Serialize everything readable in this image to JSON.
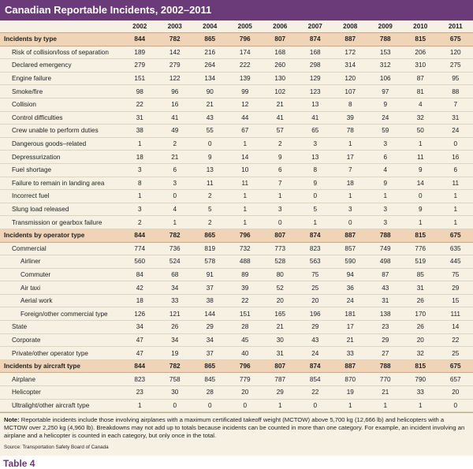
{
  "title": "Canadian Reportable Incidents, 2002–2011",
  "years": [
    "2002",
    "2003",
    "2004",
    "2005",
    "2006",
    "2007",
    "2008",
    "2009",
    "2010",
    "2011"
  ],
  "rows": [
    {
      "type": "head",
      "label": "Incidents by type",
      "values": [
        "844",
        "782",
        "865",
        "796",
        "807",
        "874",
        "887",
        "788",
        "815",
        "675"
      ]
    },
    {
      "type": "row",
      "label": "Risk of collision/loss of separation",
      "values": [
        "189",
        "142",
        "216",
        "174",
        "168",
        "168",
        "172",
        "153",
        "206",
        "120"
      ]
    },
    {
      "type": "row",
      "label": "Declared emergency",
      "values": [
        "279",
        "279",
        "264",
        "222",
        "260",
        "298",
        "314",
        "312",
        "310",
        "275"
      ]
    },
    {
      "type": "row",
      "label": "Engine failure",
      "values": [
        "151",
        "122",
        "134",
        "139",
        "130",
        "129",
        "120",
        "106",
        "87",
        "95"
      ]
    },
    {
      "type": "row",
      "label": "Smoke/fire",
      "values": [
        "98",
        "96",
        "90",
        "99",
        "102",
        "123",
        "107",
        "97",
        "81",
        "88"
      ]
    },
    {
      "type": "row",
      "label": "Collision",
      "values": [
        "22",
        "16",
        "21",
        "12",
        "21",
        "13",
        "8",
        "9",
        "4",
        "7"
      ]
    },
    {
      "type": "row",
      "label": "Control difficulties",
      "values": [
        "31",
        "41",
        "43",
        "44",
        "41",
        "41",
        "39",
        "24",
        "32",
        "31"
      ]
    },
    {
      "type": "row",
      "label": "Crew unable to perform duties",
      "values": [
        "38",
        "49",
        "55",
        "67",
        "57",
        "65",
        "78",
        "59",
        "50",
        "24"
      ]
    },
    {
      "type": "row",
      "label": "Dangerous goods–related",
      "values": [
        "1",
        "2",
        "0",
        "1",
        "2",
        "3",
        "1",
        "3",
        "1",
        "0"
      ]
    },
    {
      "type": "row",
      "label": "Depressurization",
      "values": [
        "18",
        "21",
        "9",
        "14",
        "9",
        "13",
        "17",
        "6",
        "11",
        "16"
      ]
    },
    {
      "type": "row",
      "label": "Fuel shortage",
      "values": [
        "3",
        "6",
        "13",
        "10",
        "6",
        "8",
        "7",
        "4",
        "9",
        "6"
      ]
    },
    {
      "type": "row",
      "label": "Failure to remain in landing area",
      "values": [
        "8",
        "3",
        "11",
        "11",
        "7",
        "9",
        "18",
        "9",
        "14",
        "11"
      ]
    },
    {
      "type": "row",
      "label": "Incorrect fuel",
      "values": [
        "1",
        "0",
        "2",
        "1",
        "1",
        "0",
        "1",
        "1",
        "0",
        "1"
      ]
    },
    {
      "type": "row",
      "label": "Slung load released",
      "values": [
        "3",
        "4",
        "5",
        "1",
        "3",
        "5",
        "3",
        "3",
        "9",
        "1"
      ]
    },
    {
      "type": "row",
      "label": "Transmission or gearbox failure",
      "values": [
        "2",
        "1",
        "2",
        "1",
        "0",
        "1",
        "0",
        "3",
        "1",
        "1"
      ]
    },
    {
      "type": "head",
      "label": "Incidents by operator type",
      "values": [
        "844",
        "782",
        "865",
        "796",
        "807",
        "874",
        "887",
        "788",
        "815",
        "675"
      ]
    },
    {
      "type": "row",
      "label": "Commercial",
      "values": [
        "774",
        "736",
        "819",
        "732",
        "773",
        "823",
        "857",
        "749",
        "776",
        "635"
      ]
    },
    {
      "type": "sub",
      "label": "Airliner",
      "values": [
        "560",
        "524",
        "578",
        "488",
        "528",
        "563",
        "590",
        "498",
        "519",
        "445"
      ]
    },
    {
      "type": "sub",
      "label": "Commuter",
      "values": [
        "84",
        "68",
        "91",
        "89",
        "80",
        "75",
        "94",
        "87",
        "85",
        "75"
      ]
    },
    {
      "type": "sub",
      "label": "Air taxi",
      "values": [
        "42",
        "34",
        "37",
        "39",
        "52",
        "25",
        "36",
        "43",
        "31",
        "29"
      ]
    },
    {
      "type": "sub",
      "label": "Aerial work",
      "values": [
        "18",
        "33",
        "38",
        "22",
        "20",
        "20",
        "24",
        "31",
        "26",
        "15"
      ]
    },
    {
      "type": "sub",
      "label": "Foreign/other commercial type",
      "values": [
        "126",
        "121",
        "144",
        "151",
        "165",
        "196",
        "181",
        "138",
        "170",
        "111"
      ]
    },
    {
      "type": "row",
      "label": "State",
      "values": [
        "34",
        "26",
        "29",
        "28",
        "21",
        "29",
        "17",
        "23",
        "26",
        "14"
      ]
    },
    {
      "type": "row",
      "label": "Corporate",
      "values": [
        "47",
        "34",
        "34",
        "45",
        "30",
        "43",
        "21",
        "29",
        "20",
        "22"
      ]
    },
    {
      "type": "row",
      "label": "Private/other operator type",
      "values": [
        "47",
        "19",
        "37",
        "40",
        "31",
        "24",
        "33",
        "27",
        "32",
        "25"
      ]
    },
    {
      "type": "head",
      "label": "Incidents by aircraft type",
      "values": [
        "844",
        "782",
        "865",
        "796",
        "807",
        "874",
        "887",
        "788",
        "815",
        "675"
      ]
    },
    {
      "type": "row",
      "label": "Airplane",
      "values": [
        "823",
        "758",
        "845",
        "779",
        "787",
        "854",
        "870",
        "770",
        "790",
        "657"
      ]
    },
    {
      "type": "row",
      "label": "Helicopter",
      "values": [
        "23",
        "30",
        "28",
        "20",
        "29",
        "22",
        "19",
        "21",
        "33",
        "20"
      ]
    },
    {
      "type": "row",
      "label": "Ultralight/other aircraft type",
      "values": [
        "1",
        "0",
        "0",
        "0",
        "1",
        "0",
        "1",
        "1",
        "1",
        "0"
      ]
    }
  ],
  "note_label": "Note:",
  "note_text": " Reportable incidents include those involving airplanes with a maximum certificated takeoff weight (MCTOW) above 5,700 kg (12,666 lb) and helicopters with a MCTOW over 2,250 kg (4,960 lb). Breakdowns may not add up to totals because incidents can be counted in more than one category. For example, an incident involving an airplane and a helicopter is counted in each category, but only once in the total.",
  "source": "Source: Transportation Safety Board of Canada",
  "table_label": "Table 4",
  "colors": {
    "title_bg": "#6b3a78",
    "head_row_bg": "#f0d4b7",
    "panel_bg": "#f6f1e3"
  }
}
